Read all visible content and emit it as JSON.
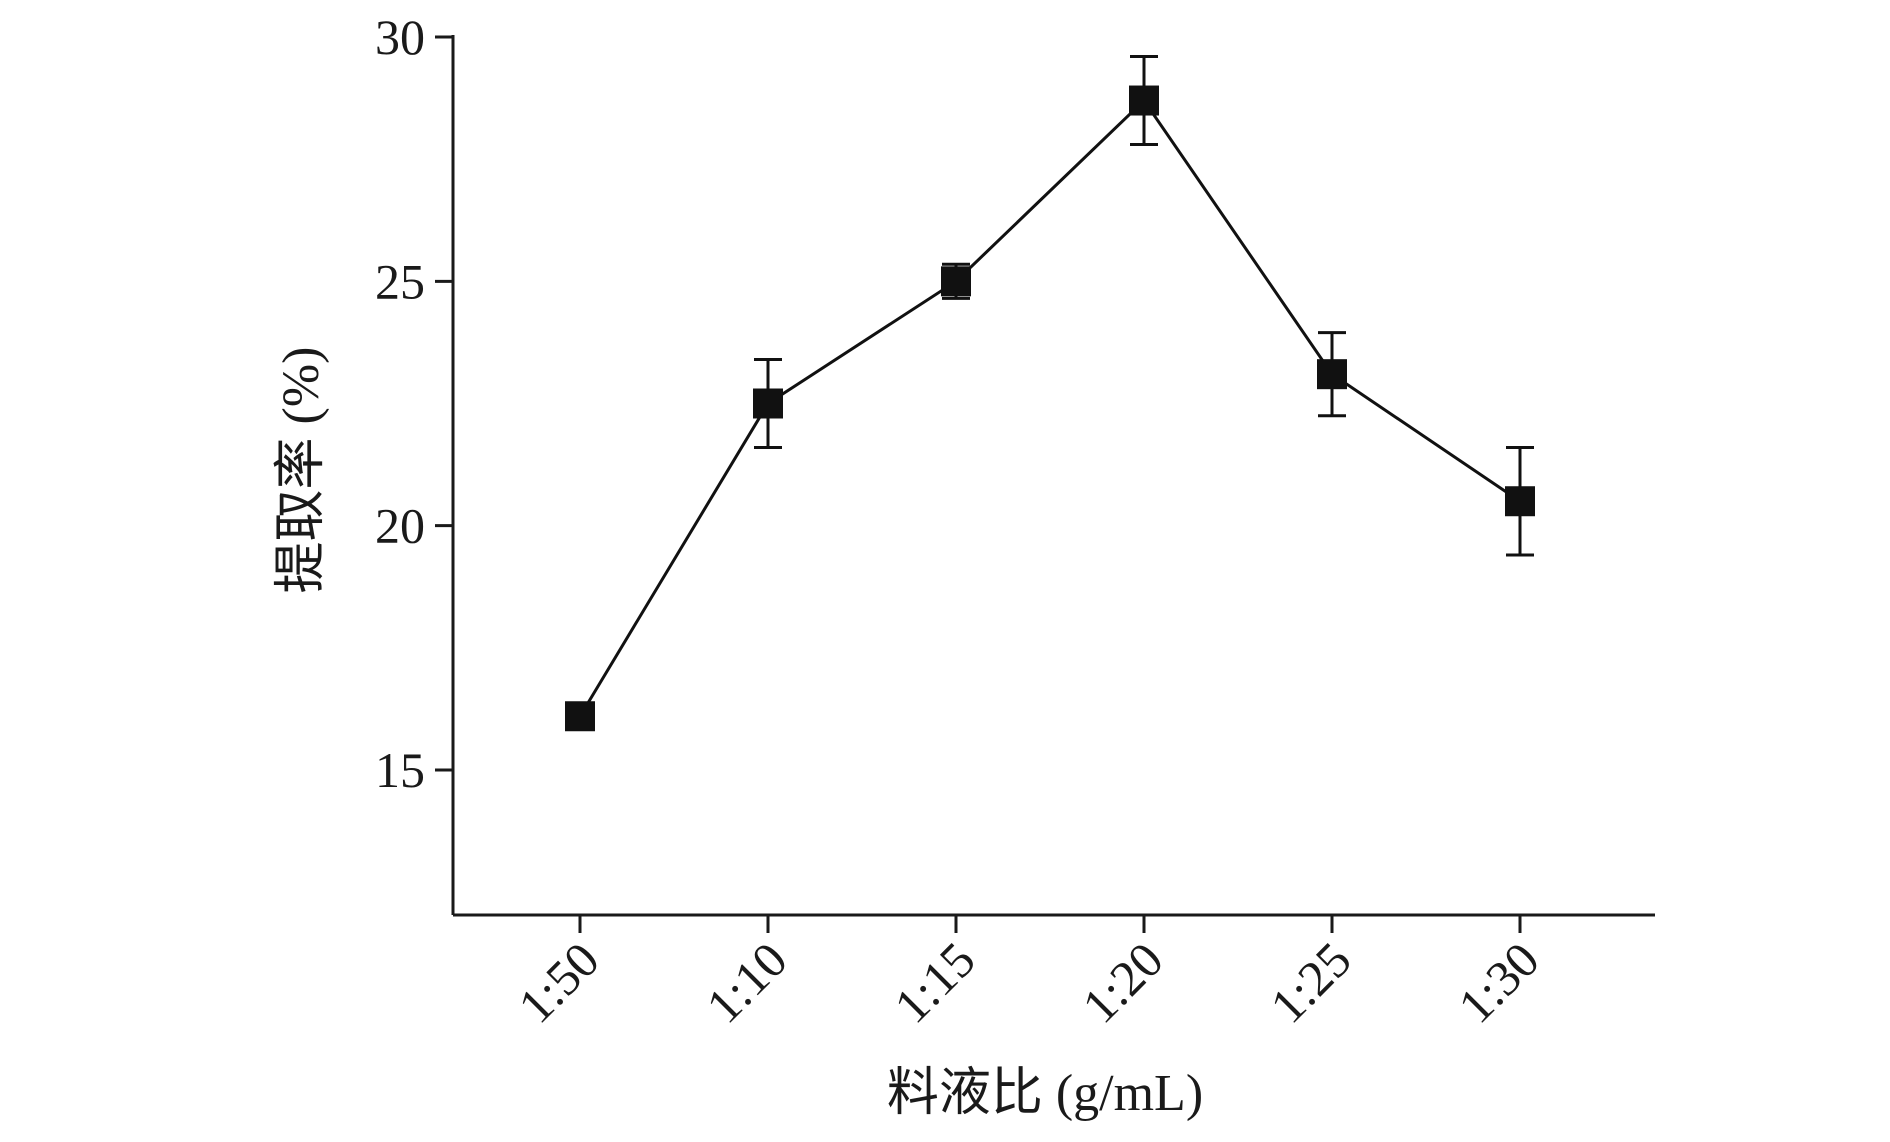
{
  "chart_data": {
    "type": "line",
    "title": "",
    "xlabel": "料液比 (g/mL)",
    "ylabel": "提取率 (%)",
    "categories": [
      "1:50",
      "1:10",
      "1:15",
      "1:20",
      "1:25",
      "1:30"
    ],
    "series": [
      {
        "values": [
          16.1,
          22.5,
          25.0,
          28.7,
          23.1,
          20.5
        ],
        "errors": [
          0.0,
          0.9,
          0.35,
          0.9,
          0.85,
          1.1
        ],
        "marker": "square",
        "color": "#111111"
      }
    ],
    "ylim": [
      12,
      30
    ],
    "yticks": [
      15,
      20,
      25,
      30
    ],
    "grid": false,
    "legend": "none"
  }
}
